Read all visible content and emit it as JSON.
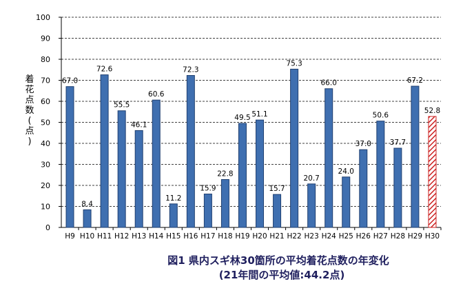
{
  "chart_data": {
    "type": "bar",
    "title": "図1 県内スギ林30箇所の平均着花点数の年変化",
    "subtitle": "(21年間の平均値:44.2点)",
    "ylabel": "着花点数(点)",
    "xlabel": "",
    "ylim": [
      0,
      100
    ],
    "yticks": [
      0,
      10,
      20,
      30,
      40,
      50,
      60,
      70,
      80,
      90,
      100
    ],
    "grid": "horizontal-dashed",
    "categories": [
      "H9",
      "H10",
      "H11",
      "H12",
      "H13",
      "H14",
      "H15",
      "H16",
      "H17",
      "H18",
      "H19",
      "H20",
      "H21",
      "H22",
      "H23",
      "H24",
      "H25",
      "H26",
      "H27",
      "H28",
      "H29",
      "H30"
    ],
    "values": [
      67.0,
      8.4,
      72.6,
      55.5,
      46.1,
      60.6,
      11.2,
      72.3,
      15.9,
      22.8,
      49.5,
      51.1,
      15.7,
      75.3,
      20.7,
      66.0,
      24.0,
      37.0,
      50.6,
      37.7,
      67.2,
      52.8
    ],
    "labels": [
      "67.0",
      "8.4",
      "72.6",
      "55.5",
      "46.1",
      "60.6",
      "11.2",
      "72.3",
      "15.9",
      "22.8",
      "49.5",
      "51.1",
      "15.7",
      "75.3",
      "20.7",
      "66.0",
      "24.0",
      "37.0",
      "50.6",
      "37.7",
      "67.2",
      "52.8"
    ],
    "colors": {
      "bar": "#3f6fb0",
      "bar_edge": "#1f3f70",
      "highlight_stroke": "#cc2222",
      "highlight_fill": "#ffffff"
    },
    "highlight_index": 21
  }
}
